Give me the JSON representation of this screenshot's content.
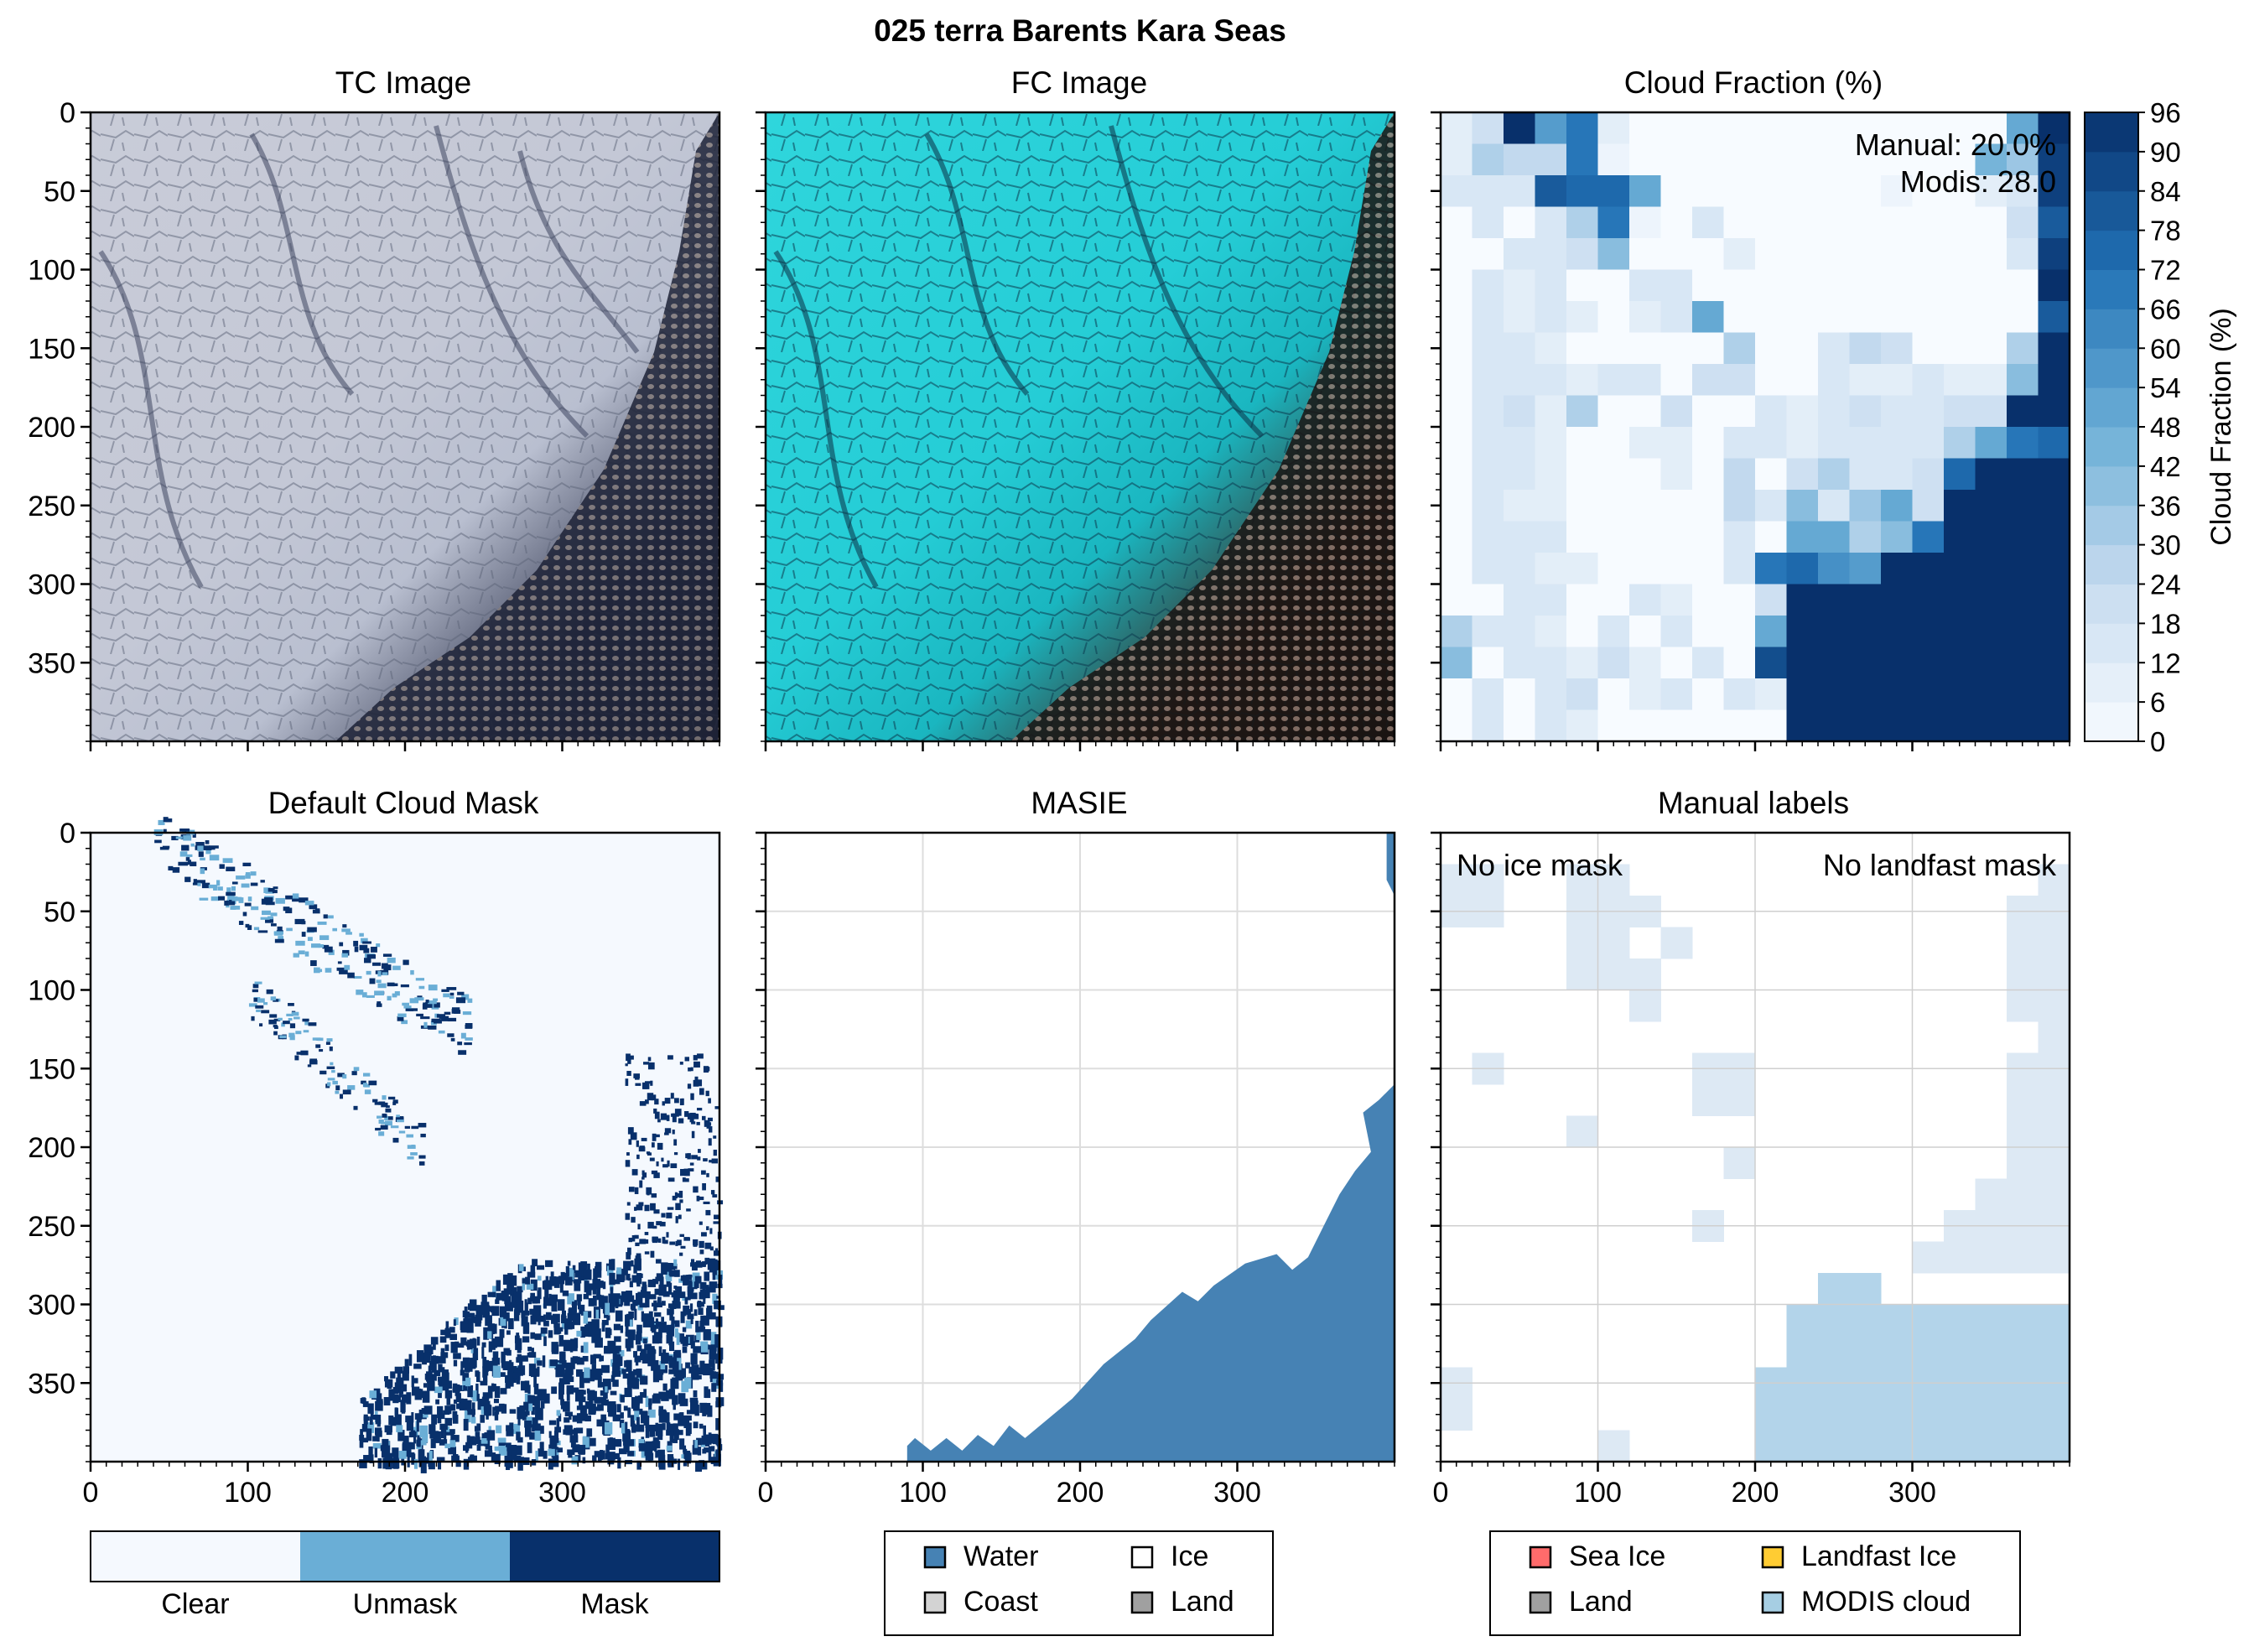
{
  "figure": {
    "title": "025 terra Barents Kara Seas"
  },
  "panel_titles": {
    "tc": "TC Image",
    "fc": "FC Image",
    "cf": "Cloud Fraction (%)",
    "mask": "Default Cloud Mask",
    "masie": "MASIE",
    "labels": "Manual labels"
  },
  "annotations": {
    "manual_pct": "Manual: 20.0%",
    "modis_pct": "Modis: 28.0",
    "no_ice": "No ice mask",
    "no_landfast": "No landfast mask"
  },
  "axes": {
    "x_ticks": [
      "0",
      "100",
      "200",
      "300"
    ],
    "y_ticks": [
      "0",
      "50",
      "100",
      "150",
      "200",
      "250",
      "300",
      "350"
    ],
    "x_tick_values": [
      0,
      100,
      200,
      300
    ],
    "y_tick_values": [
      0,
      50,
      100,
      150,
      200,
      250,
      300,
      350
    ],
    "range": [
      0,
      400
    ]
  },
  "colorbar": {
    "label": "Cloud Fraction (%)",
    "ticks": [
      "0",
      "6",
      "12",
      "18",
      "24",
      "30",
      "36",
      "42",
      "48",
      "54",
      "60",
      "66",
      "72",
      "78",
      "84",
      "90",
      "96"
    ]
  },
  "mask_legend": {
    "labels": [
      "Clear",
      "Unmask",
      "Mask"
    ],
    "colors": [
      "#f5f9fe",
      "#6aaed6",
      "#08306b"
    ]
  },
  "masie_legend": {
    "items": [
      {
        "label": "Water",
        "color": "#4682b4"
      },
      {
        "label": "Ice",
        "color": "#ffffff"
      },
      {
        "label": "Coast",
        "color": "#d3d3d3"
      },
      {
        "label": "Land",
        "color": "#a0a0a0"
      }
    ]
  },
  "labels_legend": {
    "items": [
      {
        "label": "Sea Ice",
        "color": "#ff6b6b"
      },
      {
        "label": "Landfast Ice",
        "color": "#ffcc33"
      },
      {
        "label": "Land",
        "color": "#a0a0a0"
      },
      {
        "label": "MODIS cloud",
        "color": "#a6cee3"
      }
    ]
  },
  "chart_data": [
    {
      "type": "heatmap",
      "title": "Cloud Fraction (%)",
      "colorbar_label": "Cloud Fraction (%)",
      "xlim": [
        0,
        400
      ],
      "ylim": [
        400,
        0
      ],
      "vmin": 0,
      "vmax": 96,
      "grid_cell_size": 20,
      "grid_cols": 20,
      "grid_rows": 20,
      "values": [
        [
          10,
          20,
          96,
          55,
          70,
          10,
          0,
          0,
          0,
          0,
          0,
          0,
          0,
          0,
          0,
          0,
          0,
          0,
          50,
          96
        ],
        [
          10,
          30,
          25,
          25,
          70,
          5,
          0,
          0,
          0,
          0,
          0,
          0,
          0,
          0,
          0,
          0,
          0,
          45,
          35,
          90
        ],
        [
          15,
          15,
          15,
          80,
          75,
          75,
          50,
          0,
          0,
          0,
          0,
          0,
          0,
          0,
          5,
          0,
          0,
          10,
          15,
          90
        ],
        [
          0,
          15,
          0,
          15,
          30,
          70,
          5,
          0,
          15,
          0,
          0,
          0,
          0,
          0,
          0,
          0,
          0,
          0,
          20,
          80
        ],
        [
          0,
          0,
          15,
          15,
          20,
          40,
          0,
          0,
          0,
          10,
          0,
          0,
          0,
          0,
          0,
          0,
          0,
          0,
          15,
          90
        ],
        [
          0,
          15,
          10,
          15,
          0,
          0,
          15,
          15,
          0,
          0,
          0,
          0,
          0,
          0,
          0,
          0,
          0,
          0,
          0,
          96
        ],
        [
          0,
          15,
          10,
          15,
          10,
          0,
          10,
          15,
          50,
          0,
          0,
          0,
          0,
          0,
          0,
          0,
          0,
          0,
          0,
          80
        ],
        [
          0,
          15,
          15,
          10,
          0,
          0,
          0,
          0,
          0,
          30,
          0,
          0,
          15,
          25,
          20,
          0,
          0,
          0,
          30,
          96
        ],
        [
          0,
          15,
          15,
          15,
          10,
          15,
          15,
          0,
          20,
          20,
          0,
          0,
          15,
          10,
          10,
          15,
          10,
          10,
          40,
          96
        ],
        [
          0,
          15,
          20,
          10,
          30,
          0,
          0,
          20,
          0,
          0,
          15,
          10,
          15,
          20,
          15,
          15,
          20,
          20,
          96,
          96
        ],
        [
          0,
          15,
          15,
          10,
          0,
          0,
          10,
          10,
          0,
          15,
          15,
          10,
          15,
          15,
          15,
          15,
          30,
          50,
          70,
          75
        ],
        [
          0,
          15,
          15,
          10,
          0,
          0,
          0,
          10,
          0,
          25,
          0,
          20,
          30,
          15,
          15,
          20,
          75,
          96,
          96,
          96
        ],
        [
          0,
          15,
          10,
          10,
          0,
          0,
          0,
          0,
          0,
          25,
          15,
          40,
          15,
          35,
          50,
          20,
          96,
          96,
          96,
          96
        ],
        [
          0,
          15,
          15,
          15,
          0,
          0,
          0,
          0,
          0,
          15,
          0,
          50,
          50,
          30,
          40,
          70,
          96,
          96,
          96,
          96
        ],
        [
          0,
          15,
          15,
          10,
          10,
          0,
          0,
          0,
          0,
          15,
          70,
          75,
          60,
          55,
          96,
          96,
          96,
          96,
          96,
          96
        ],
        [
          0,
          0,
          15,
          15,
          0,
          0,
          15,
          10,
          0,
          0,
          20,
          96,
          96,
          96,
          96,
          96,
          96,
          96,
          96,
          96
        ],
        [
          30,
          15,
          15,
          10,
          0,
          15,
          0,
          15,
          0,
          0,
          50,
          96,
          96,
          96,
          96,
          96,
          96,
          96,
          96,
          96
        ],
        [
          40,
          0,
          15,
          15,
          10,
          20,
          10,
          0,
          15,
          0,
          85,
          96,
          96,
          96,
          96,
          96,
          96,
          96,
          96,
          96
        ],
        [
          0,
          15,
          0,
          15,
          20,
          0,
          10,
          15,
          0,
          15,
          10,
          96,
          96,
          96,
          96,
          96,
          96,
          96,
          96,
          96
        ],
        [
          0,
          15,
          0,
          15,
          10,
          0,
          0,
          0,
          0,
          0,
          0,
          96,
          96,
          96,
          96,
          96,
          96,
          96,
          96,
          96
        ]
      ]
    },
    {
      "type": "heatmap",
      "title": "MASIE",
      "xlim": [
        0,
        400
      ],
      "ylim": [
        400,
        0
      ],
      "categories": [
        "Water",
        "Ice",
        "Coast",
        "Land"
      ],
      "water_boundary": [
        [
          90,
          390
        ],
        [
          95,
          385
        ],
        [
          105,
          393
        ],
        [
          115,
          385
        ],
        [
          125,
          393
        ],
        [
          135,
          383
        ],
        [
          145,
          390
        ],
        [
          155,
          377
        ],
        [
          165,
          385
        ],
        [
          195,
          360
        ],
        [
          215,
          338
        ],
        [
          235,
          322
        ],
        [
          245,
          310
        ],
        [
          265,
          292
        ],
        [
          275,
          298
        ],
        [
          285,
          288
        ],
        [
          305,
          274
        ],
        [
          325,
          268
        ],
        [
          335,
          278
        ],
        [
          345,
          270
        ],
        [
          355,
          250
        ],
        [
          365,
          230
        ],
        [
          375,
          215
        ],
        [
          385,
          203
        ],
        [
          380,
          178
        ],
        [
          390,
          170
        ],
        [
          400,
          160
        ],
        [
          400,
          400
        ],
        [
          90,
          400
        ]
      ],
      "water_corner_top_right": [
        [
          395,
          0
        ],
        [
          400,
          0
        ],
        [
          400,
          40
        ],
        [
          395,
          30
        ]
      ]
    },
    {
      "type": "heatmap",
      "title": "Manual labels",
      "xlim": [
        0,
        400
      ],
      "ylim": [
        400,
        0
      ],
      "grid_cell_size": 20,
      "cloud_cells": [
        [
          0,
          1
        ],
        [
          0,
          2
        ],
        [
          1,
          1
        ],
        [
          1,
          2
        ],
        [
          4,
          1
        ],
        [
          5,
          1
        ],
        [
          4,
          2
        ],
        [
          5,
          2
        ],
        [
          6,
          2
        ],
        [
          4,
          3
        ],
        [
          5,
          3
        ],
        [
          7,
          3
        ],
        [
          4,
          4
        ],
        [
          5,
          4
        ],
        [
          6,
          4
        ],
        [
          6,
          5
        ],
        [
          19,
          1
        ],
        [
          19,
          2
        ],
        [
          18,
          2
        ],
        [
          19,
          3
        ],
        [
          18,
          3
        ],
        [
          19,
          4
        ],
        [
          18,
          4
        ],
        [
          19,
          5
        ],
        [
          18,
          5
        ],
        [
          19,
          6
        ],
        [
          19,
          7
        ],
        [
          18,
          7
        ],
        [
          19,
          8
        ],
        [
          18,
          8
        ],
        [
          19,
          9
        ],
        [
          18,
          9
        ],
        [
          19,
          10
        ],
        [
          18,
          10
        ],
        [
          19,
          11
        ],
        [
          18,
          11
        ],
        [
          17,
          11
        ],
        [
          19,
          12
        ],
        [
          18,
          12
        ],
        [
          17,
          12
        ],
        [
          16,
          12
        ],
        [
          19,
          13
        ],
        [
          18,
          13
        ],
        [
          17,
          13
        ],
        [
          16,
          13
        ],
        [
          15,
          13
        ],
        [
          1,
          7
        ],
        [
          8,
          7
        ],
        [
          9,
          7
        ],
        [
          8,
          8
        ],
        [
          9,
          8
        ],
        [
          4,
          9
        ],
        [
          9,
          10
        ],
        [
          8,
          12
        ],
        [
          12,
          14
        ],
        [
          13,
          14
        ],
        [
          11,
          15
        ],
        [
          12,
          15
        ],
        [
          13,
          15
        ],
        [
          14,
          15
        ],
        [
          15,
          15
        ],
        [
          16,
          15
        ],
        [
          17,
          15
        ],
        [
          18,
          15
        ],
        [
          19,
          15
        ],
        [
          11,
          16
        ],
        [
          12,
          16
        ],
        [
          13,
          16
        ],
        [
          14,
          16
        ],
        [
          15,
          16
        ],
        [
          16,
          16
        ],
        [
          17,
          16
        ],
        [
          18,
          16
        ],
        [
          19,
          16
        ],
        [
          10,
          17
        ],
        [
          11,
          17
        ],
        [
          12,
          17
        ],
        [
          13,
          17
        ],
        [
          14,
          17
        ],
        [
          15,
          17
        ],
        [
          16,
          17
        ],
        [
          17,
          17
        ],
        [
          18,
          17
        ],
        [
          19,
          17
        ],
        [
          10,
          18
        ],
        [
          11,
          18
        ],
        [
          12,
          18
        ],
        [
          13,
          18
        ],
        [
          14,
          18
        ],
        [
          15,
          18
        ],
        [
          16,
          18
        ],
        [
          17,
          18
        ],
        [
          18,
          18
        ],
        [
          19,
          18
        ],
        [
          10,
          19
        ],
        [
          11,
          19
        ],
        [
          12,
          19
        ],
        [
          13,
          19
        ],
        [
          14,
          19
        ],
        [
          15,
          19
        ],
        [
          16,
          19
        ],
        [
          17,
          19
        ],
        [
          18,
          19
        ],
        [
          19,
          19
        ],
        [
          0,
          17
        ],
        [
          0,
          18
        ],
        [
          5,
          19
        ]
      ]
    }
  ]
}
